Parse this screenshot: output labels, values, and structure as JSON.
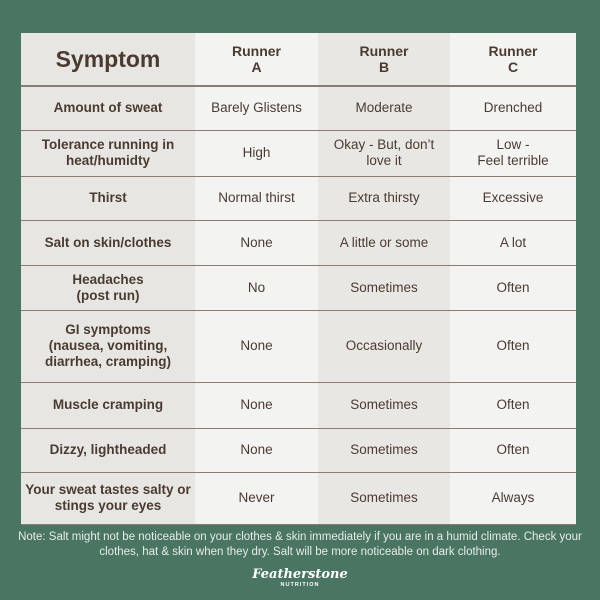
{
  "table": {
    "headers": [
      "Symptom",
      "Runner\nA",
      "Runner\nB",
      "Runner\nC"
    ],
    "rows": [
      [
        "Amount of sweat",
        "Barely Glistens",
        "Moderate",
        "Drenched"
      ],
      [
        "Tolerance running in heat/humidty",
        "High",
        "Okay - But, don’t love it",
        "Low -\nFeel terrible"
      ],
      [
        "Thirst",
        "Normal thirst",
        "Extra thirsty",
        "Excessive"
      ],
      [
        "Salt on skin/clothes",
        "None",
        "A little or some",
        "A lot"
      ],
      [
        "Headaches\n(post run)",
        "No",
        "Sometimes",
        "Often"
      ],
      [
        "GI symptoms\n(nausea, vomiting, diarrhea, cramping)",
        "None",
        "Occasionally",
        "Often"
      ],
      [
        "Muscle cramping",
        "None",
        "Sometimes",
        "Often"
      ],
      [
        "Dizzy, lightheaded",
        "None",
        "Sometimes",
        "Often"
      ],
      [
        "Your sweat tastes salty or stings your eyes",
        "Never",
        "Sometimes",
        "Always"
      ]
    ]
  },
  "note": "Note: Salt might not be noticeable on your clothes & skin immediately if you are in a humid climate. Check your clothes, hat & skin when they dry. Salt will be more noticeable on dark clothing.",
  "logo": {
    "name": "Featherstone",
    "sub": "NUTRITION"
  },
  "colors": {
    "background": "#4a7562",
    "text": "#4a3b32",
    "border": "#8a7c72"
  }
}
